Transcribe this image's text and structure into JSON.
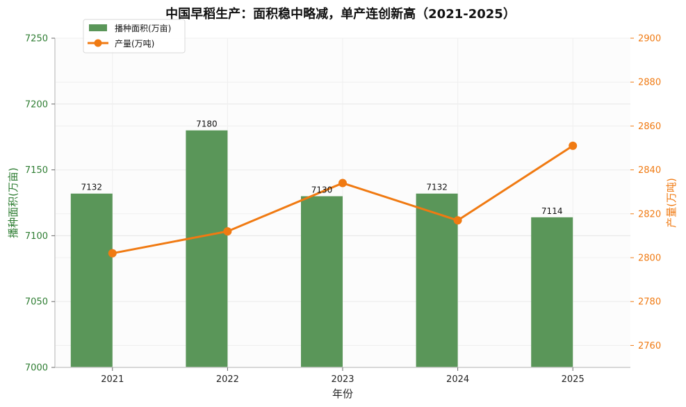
{
  "chart_data": {
    "type": "bar+line",
    "title": "中国早稻生产：面积稳中略减，单产连创新高（2021-2025）",
    "xlabel": "年份",
    "categories": [
      "2021",
      "2022",
      "2023",
      "2024",
      "2025"
    ],
    "series": [
      {
        "name": "播种面积(万亩)",
        "type": "bar",
        "axis": "left",
        "values": [
          7132,
          7180,
          7130,
          7132,
          7114
        ],
        "color": "#5a9659"
      },
      {
        "name": "产量(万吨)",
        "type": "line",
        "axis": "right",
        "values": [
          2802,
          2812,
          2834,
          2817,
          2851
        ],
        "color": "#f07a12"
      }
    ],
    "y_left": {
      "label": "播种面积(万亩)",
      "range": [
        7000,
        7250
      ],
      "ticks": [
        7000,
        7050,
        7100,
        7150,
        7200,
        7250
      ],
      "color": "#2e7d32"
    },
    "y_right": {
      "label": "产量(万吨)",
      "range": [
        2750,
        2900
      ],
      "ticks": [
        2760,
        2780,
        2800,
        2820,
        2840,
        2860,
        2880,
        2900
      ],
      "color": "#f07a12"
    },
    "grid": true,
    "legend_position": "top-left"
  }
}
